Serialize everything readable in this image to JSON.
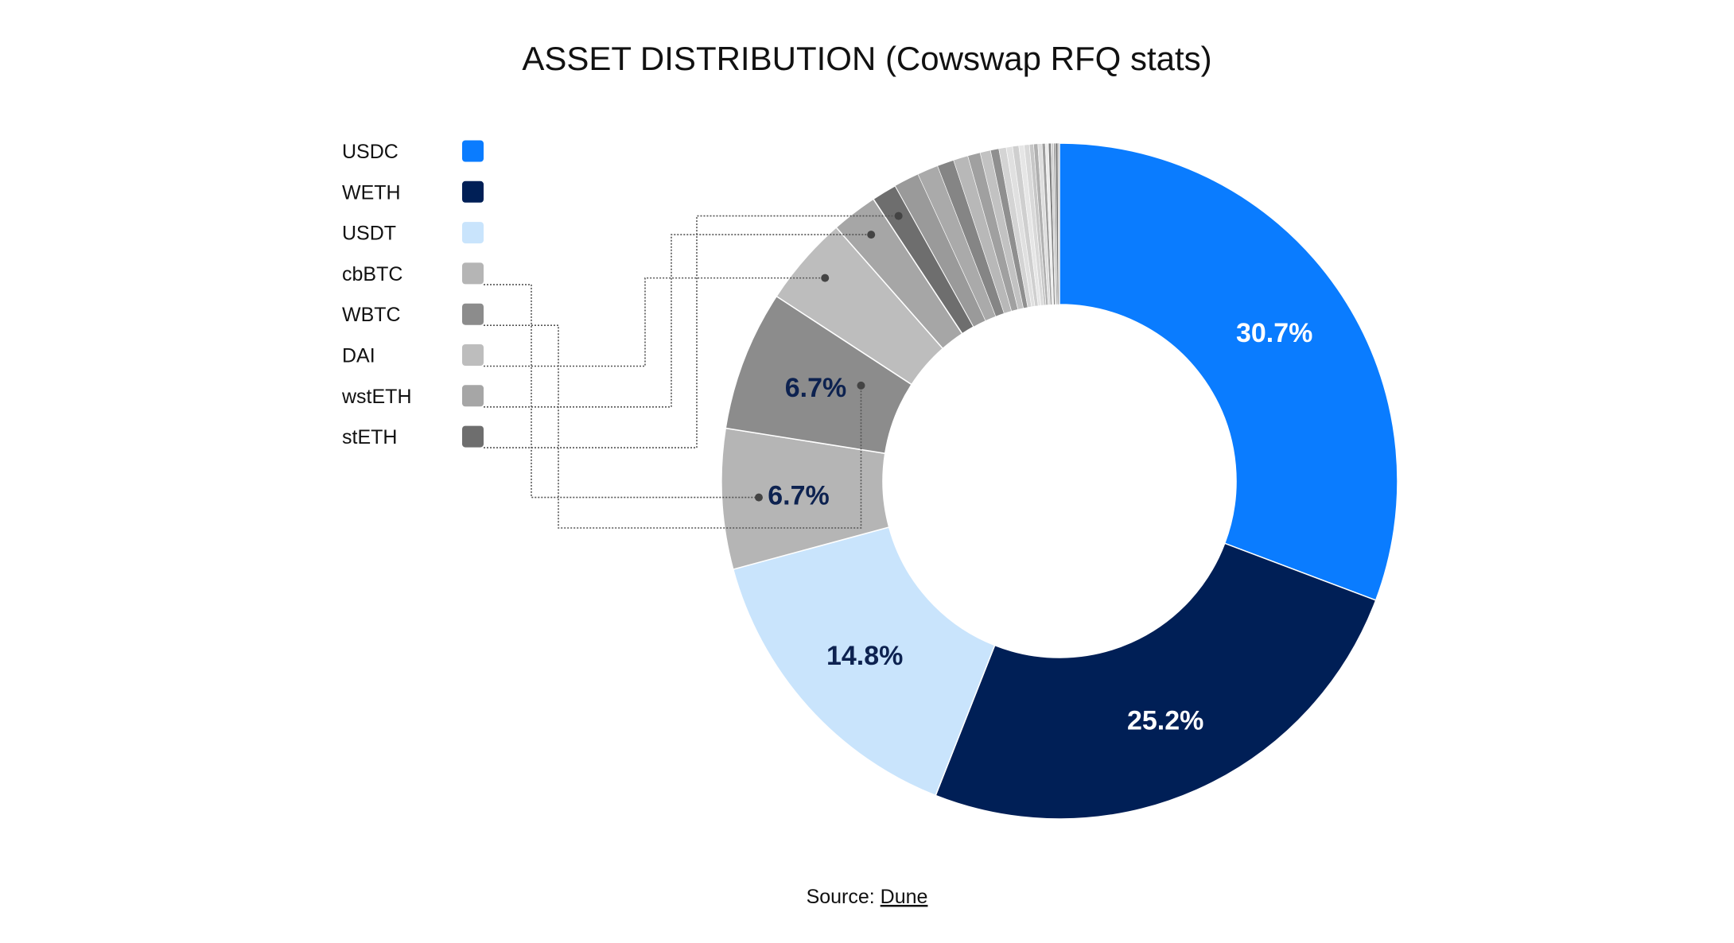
{
  "chart_data": {
    "type": "pie",
    "title": "ASSET DISTRIBUTION (Cowswap RFQ stats)",
    "donut": true,
    "slices": [
      {
        "name": "USDC",
        "value": 30.7,
        "color": "#0a7cff",
        "label": "30.7%",
        "label_color": "#ffffff"
      },
      {
        "name": "WETH",
        "value": 25.2,
        "color": "#001f56",
        "label": "25.2%",
        "label_color": "#ffffff"
      },
      {
        "name": "USDT",
        "value": 14.8,
        "color": "#c9e4fc",
        "label": "14.8%",
        "label_color": "#0d2250"
      },
      {
        "name": "cbBTC",
        "value": 6.7,
        "color": "#b5b5b5",
        "label": "6.7%",
        "label_color": "#0d2250"
      },
      {
        "name": "WBTC",
        "value": 6.7,
        "color": "#8c8c8c",
        "label": "6.7%",
        "label_color": "#0d2250"
      },
      {
        "name": "DAI",
        "value": 4.3,
        "color": "#bdbdbd",
        "label": "",
        "label_color": "#0d2250"
      },
      {
        "name": "wstETH",
        "value": 2.2,
        "color": "#a6a6a6",
        "label": "",
        "label_color": "#0d2250"
      },
      {
        "name": "stETH",
        "value": 1.2,
        "color": "#6e6e6e",
        "label": "",
        "label_color": "#0d2250"
      },
      {
        "name": "",
        "value": 1.2,
        "color": "#9a9a9a",
        "label": ""
      },
      {
        "name": "",
        "value": 1.0,
        "color": "#aaaaaa",
        "label": ""
      },
      {
        "name": "",
        "value": 0.8,
        "color": "#858585",
        "label": ""
      },
      {
        "name": "",
        "value": 0.7,
        "color": "#b8b8b8",
        "label": ""
      },
      {
        "name": "",
        "value": 0.6,
        "color": "#a0a0a0",
        "label": ""
      },
      {
        "name": "",
        "value": 0.5,
        "color": "#c2c2c2",
        "label": ""
      },
      {
        "name": "",
        "value": 0.4,
        "color": "#8f8f8f",
        "label": ""
      },
      {
        "name": "",
        "value": 0.35,
        "color": "#d4d4d4",
        "label": ""
      },
      {
        "name": "",
        "value": 0.3,
        "color": "#e0e0e0",
        "label": ""
      },
      {
        "name": "",
        "value": 0.3,
        "color": "#cfcfcf",
        "label": ""
      },
      {
        "name": "",
        "value": 0.25,
        "color": "#e6e6e6",
        "label": ""
      },
      {
        "name": "",
        "value": 0.25,
        "color": "#d9d9d9",
        "label": ""
      },
      {
        "name": "",
        "value": 0.2,
        "color": "#c7c7c7",
        "label": ""
      },
      {
        "name": "",
        "value": 0.2,
        "color": "#b0b0b0",
        "label": ""
      },
      {
        "name": "",
        "value": 0.2,
        "color": "#dedede",
        "label": ""
      },
      {
        "name": "",
        "value": 0.15,
        "color": "#9e9e9e",
        "label": ""
      },
      {
        "name": "",
        "value": 0.15,
        "color": "#ececec",
        "label": ""
      },
      {
        "name": "",
        "value": 0.12,
        "color": "#7f7f7f",
        "label": ""
      },
      {
        "name": "",
        "value": 0.12,
        "color": "#d0d0d0",
        "label": ""
      },
      {
        "name": "",
        "value": 0.1,
        "color": "#a8a8a8",
        "label": ""
      },
      {
        "name": "",
        "value": 0.1,
        "color": "#6b6b6b",
        "label": ""
      },
      {
        "name": "",
        "value": 0.08,
        "color": "#c4c4c4",
        "label": ""
      }
    ],
    "legend": {
      "placement": "top-left",
      "items": [
        "USDC",
        "WETH",
        "USDT",
        "cbBTC",
        "WBTC",
        "DAI",
        "wstETH",
        "stETH"
      ]
    }
  },
  "source": {
    "prefix": "Source: ",
    "link_text": "Dune"
  }
}
